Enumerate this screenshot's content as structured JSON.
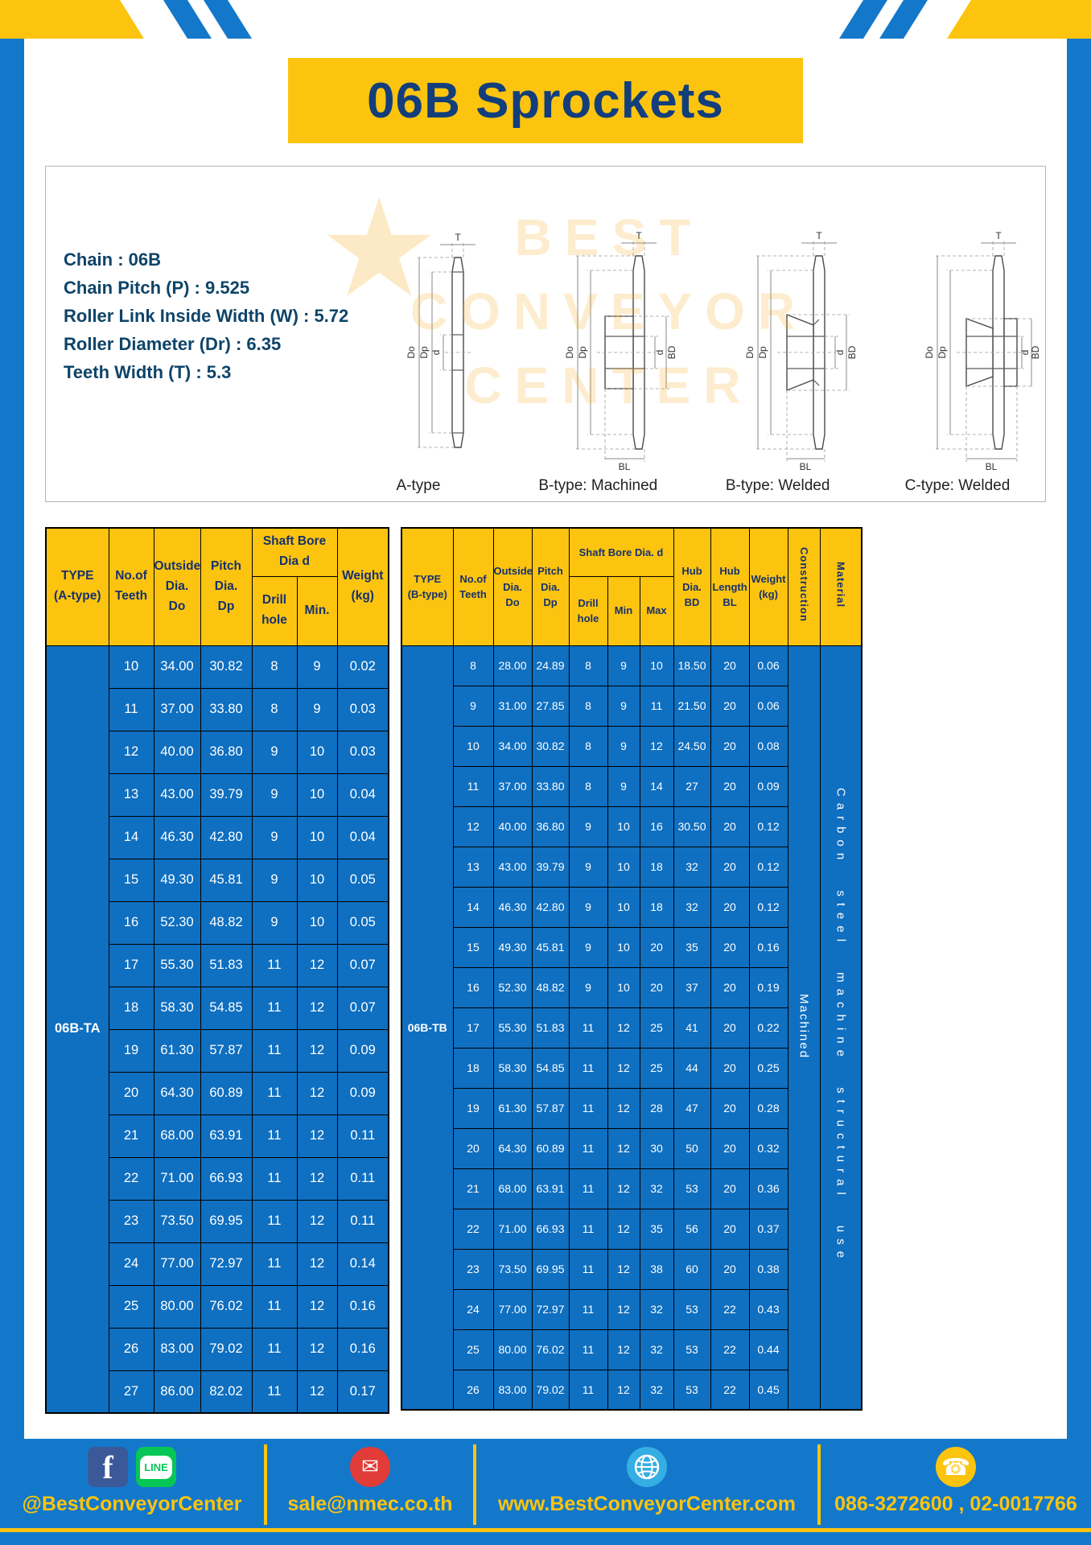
{
  "title": "06B Sprockets",
  "colors": {
    "brand_blue": "#1478ca",
    "brand_yellow": "#fcc40f",
    "table_cell_blue": "#0f6fc0",
    "header_text_navy": "#16316d"
  },
  "specs": {
    "lines": [
      "Chain : 06B",
      "Chain Pitch (P) : 9.525",
      "Roller Link Inside Width (W) : 5.72",
      "Roller Diameter (Dr) : 6.35",
      "Teeth Width (T) : 5.3"
    ]
  },
  "diagrams": {
    "captions": [
      "A-type",
      "B-type: Machined",
      "B-type: Welded",
      "C-type: Welded"
    ],
    "dims": {
      "t": "T",
      "do": "Do",
      "dp": "Dp",
      "d": "d",
      "bd": "BD",
      "bl": "BL"
    }
  },
  "watermark": {
    "star": "★",
    "lines": [
      "BEST",
      "CONVEYOR",
      "CENTER"
    ]
  },
  "table_a": {
    "type_value": "06B-TA",
    "headers": {
      "type": "TYPE\n(A-type)",
      "teeth": "No.of\nTeeth",
      "outside": "Outside\nDia.\nDo",
      "pitch": "Pitch Dia.\nDp",
      "shaft_bore": "Shaft Bore Dia d",
      "drill_hole": "Drill hole",
      "min": "Min.",
      "weight": "Weight\n(kg)"
    },
    "rows": [
      [
        "10",
        "34.00",
        "30.82",
        "8",
        "9",
        "0.02"
      ],
      [
        "11",
        "37.00",
        "33.80",
        "8",
        "9",
        "0.03"
      ],
      [
        "12",
        "40.00",
        "36.80",
        "9",
        "10",
        "0.03"
      ],
      [
        "13",
        "43.00",
        "39.79",
        "9",
        "10",
        "0.04"
      ],
      [
        "14",
        "46.30",
        "42.80",
        "9",
        "10",
        "0.04"
      ],
      [
        "15",
        "49.30",
        "45.81",
        "9",
        "10",
        "0.05"
      ],
      [
        "16",
        "52.30",
        "48.82",
        "9",
        "10",
        "0.05"
      ],
      [
        "17",
        "55.30",
        "51.83",
        "11",
        "12",
        "0.07"
      ],
      [
        "18",
        "58.30",
        "54.85",
        "11",
        "12",
        "0.07"
      ],
      [
        "19",
        "61.30",
        "57.87",
        "11",
        "12",
        "0.09"
      ],
      [
        "20",
        "64.30",
        "60.89",
        "11",
        "12",
        "0.09"
      ],
      [
        "21",
        "68.00",
        "63.91",
        "11",
        "12",
        "0.11"
      ],
      [
        "22",
        "71.00",
        "66.93",
        "11",
        "12",
        "0.11"
      ],
      [
        "23",
        "73.50",
        "69.95",
        "11",
        "12",
        "0.11"
      ],
      [
        "24",
        "77.00",
        "72.97",
        "11",
        "12",
        "0.14"
      ],
      [
        "25",
        "80.00",
        "76.02",
        "11",
        "12",
        "0.16"
      ],
      [
        "26",
        "83.00",
        "79.02",
        "11",
        "12",
        "0.16"
      ],
      [
        "27",
        "86.00",
        "82.02",
        "11",
        "12",
        "0.17"
      ]
    ]
  },
  "table_b": {
    "type_value": "06B-TB",
    "construction_value": "Machined",
    "material_value": "Carbon steel machine structural use",
    "headers": {
      "type": "TYPE\n(B-type)",
      "teeth": "No.of\nTeeth",
      "outside": "Outside\nDia.\nDo",
      "pitch": "Pitch\nDia.\nDp",
      "shaft_bore": "Shaft Bore Dia. d",
      "drill_hole": "Drill hole",
      "min": "Min",
      "max": "Max",
      "hub_dia": "Hub\nDia.\nBD",
      "hub_length": "Hub\nLength\nBL",
      "weight": "Weight\n(kg)",
      "construction": "Construction",
      "material": "Material"
    },
    "rows": [
      [
        "8",
        "28.00",
        "24.89",
        "8",
        "9",
        "10",
        "18.50",
        "20",
        "0.06"
      ],
      [
        "9",
        "31.00",
        "27.85",
        "8",
        "9",
        "11",
        "21.50",
        "20",
        "0.06"
      ],
      [
        "10",
        "34.00",
        "30.82",
        "8",
        "9",
        "12",
        "24.50",
        "20",
        "0.08"
      ],
      [
        "11",
        "37.00",
        "33.80",
        "8",
        "9",
        "14",
        "27",
        "20",
        "0.09"
      ],
      [
        "12",
        "40.00",
        "36.80",
        "9",
        "10",
        "16",
        "30.50",
        "20",
        "0.12"
      ],
      [
        "13",
        "43.00",
        "39.79",
        "9",
        "10",
        "18",
        "32",
        "20",
        "0.12"
      ],
      [
        "14",
        "46.30",
        "42.80",
        "9",
        "10",
        "18",
        "32",
        "20",
        "0.12"
      ],
      [
        "15",
        "49.30",
        "45.81",
        "9",
        "10",
        "20",
        "35",
        "20",
        "0.16"
      ],
      [
        "16",
        "52.30",
        "48.82",
        "9",
        "10",
        "20",
        "37",
        "20",
        "0.19"
      ],
      [
        "17",
        "55.30",
        "51.83",
        "11",
        "12",
        "25",
        "41",
        "20",
        "0.22"
      ],
      [
        "18",
        "58.30",
        "54.85",
        "11",
        "12",
        "25",
        "44",
        "20",
        "0.25"
      ],
      [
        "19",
        "61.30",
        "57.87",
        "11",
        "12",
        "28",
        "47",
        "20",
        "0.28"
      ],
      [
        "20",
        "64.30",
        "60.89",
        "11",
        "12",
        "30",
        "50",
        "20",
        "0.32"
      ],
      [
        "21",
        "68.00",
        "63.91",
        "11",
        "12",
        "32",
        "53",
        "20",
        "0.36"
      ],
      [
        "22",
        "71.00",
        "66.93",
        "11",
        "12",
        "35",
        "56",
        "20",
        "0.37"
      ],
      [
        "23",
        "73.50",
        "69.95",
        "11",
        "12",
        "38",
        "60",
        "20",
        "0.38"
      ],
      [
        "24",
        "77.00",
        "72.97",
        "11",
        "12",
        "32",
        "53",
        "22",
        "0.43"
      ],
      [
        "25",
        "80.00",
        "76.02",
        "11",
        "12",
        "32",
        "53",
        "22",
        "0.44"
      ],
      [
        "26",
        "83.00",
        "79.02",
        "11",
        "12",
        "32",
        "53",
        "22",
        "0.45"
      ]
    ]
  },
  "footer": {
    "handle": "@BestConveyorCenter",
    "email": "sale@nmec.co.th",
    "website": "www.BestConveyorCenter.com",
    "phone": "086-3272600 , 02-0017766",
    "icons": {
      "facebook_glyph": "f",
      "line_label": "LINE",
      "email_glyph": "✉",
      "phone_glyph": "☎"
    }
  }
}
